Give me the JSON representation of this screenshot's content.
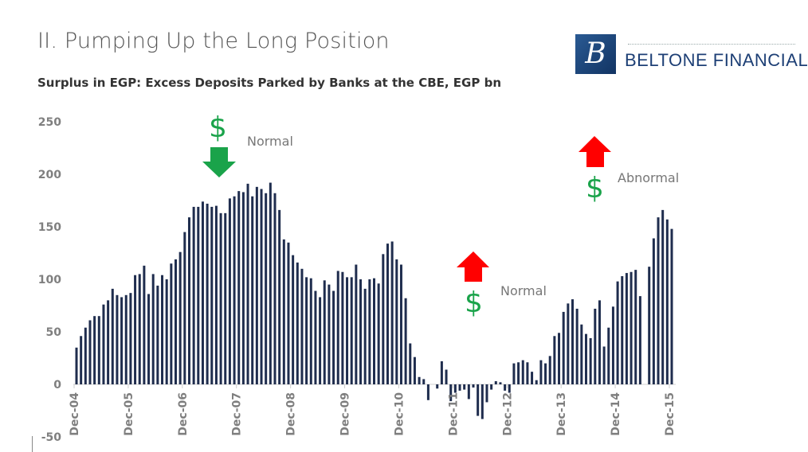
{
  "header": {
    "title": "II. Pumping Up the Long Position",
    "logo_text": "BELTONE FINANCIAL",
    "logo_letter": "B"
  },
  "chart_data": {
    "type": "bar",
    "title": "Surplus in EGP: Excess Deposits Parked by Banks at the CBE, EGP bn",
    "xlabel": "",
    "ylabel": "",
    "frequency": "monthly",
    "x_range": [
      "Dec-04",
      "Dec-15"
    ],
    "x_tick_labels": [
      "Dec-04",
      "Dec-05",
      "Dec-06",
      "Dec-07",
      "Dec-08",
      "Dec-09",
      "Dec-10",
      "Dec-11",
      "Dec-12",
      "Dec-13",
      "Dec-14",
      "Dec-15"
    ],
    "ylim": [
      -50,
      250
    ],
    "y_ticks": [
      -50,
      0,
      50,
      100,
      150,
      200,
      250
    ],
    "grid": false,
    "bar_color": "#1f2d4e",
    "values": [
      35,
      46,
      54,
      61,
      65,
      65,
      76,
      80,
      91,
      85,
      83,
      85,
      87,
      104,
      105,
      113,
      86,
      105,
      94,
      104,
      100,
      115,
      119,
      126,
      145,
      159,
      169,
      169,
      174,
      172,
      169,
      170,
      163,
      163,
      177,
      179,
      184,
      183,
      191,
      179,
      188,
      186,
      182,
      192,
      182,
      166,
      138,
      135,
      123,
      116,
      110,
      102,
      101,
      89,
      83,
      99,
      95,
      89,
      108,
      107,
      102,
      102,
      114,
      100,
      91,
      100,
      101,
      96,
      124,
      134,
      136,
      119,
      114,
      82,
      39,
      26,
      7,
      5,
      -15,
      0,
      -4,
      22,
      14,
      -16,
      -8,
      -6,
      -5,
      -14,
      -3,
      -30,
      -33,
      -17,
      -5,
      3,
      2,
      -6,
      -8,
      20,
      21,
      23,
      21,
      12,
      4,
      23,
      20,
      27,
      46,
      49,
      69,
      77,
      81,
      72,
      57,
      48,
      44,
      72,
      80,
      36,
      54,
      74,
      98,
      103,
      106,
      107,
      109,
      84,
      0,
      112,
      139,
      159,
      166,
      157,
      148
    ],
    "annotations": [
      {
        "text": "Normal",
        "symbol": "$",
        "arrow": "down",
        "arrow_color": "#1aa34a"
      },
      {
        "text": "Normal",
        "symbol": "$",
        "arrow": "up",
        "arrow_color": "#ff0000"
      },
      {
        "text": "Abnormal",
        "symbol": "$",
        "arrow": "up",
        "arrow_color": "#ff0000"
      }
    ]
  }
}
